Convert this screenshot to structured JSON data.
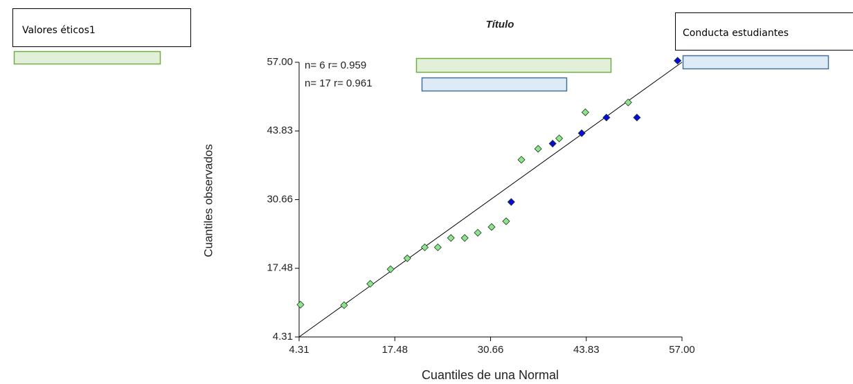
{
  "chart_data": {
    "type": "scatter",
    "title": "Título",
    "xlabel": "Cuantiles de una Normal",
    "ylabel": "Cuantiles observados",
    "xlim": [
      4.31,
      57.0
    ],
    "ylim": [
      4.31,
      57.0
    ],
    "xticks": [
      4.31,
      17.48,
      30.66,
      43.83,
      {
        "value": 57.0,
        "label": "57.00"
      }
    ],
    "yticks": [
      4.31,
      17.48,
      30.66,
      43.83,
      {
        "value": 57.0,
        "label": "57.00"
      }
    ],
    "series": [
      {
        "name": "Valores éticos1",
        "color": "#8fe38f",
        "x": [
          4.5,
          10.5,
          14.1,
          16.9,
          19.2,
          21.6,
          23.4,
          25.2,
          27.1,
          28.9,
          30.8,
          32.8,
          34.9,
          37.2,
          40.1,
          43.7,
          49.6
        ],
        "values": [
          10.5,
          10.4,
          14.5,
          17.3,
          19.4,
          21.5,
          21.5,
          23.3,
          23.3,
          24.3,
          25.4,
          26.5,
          38.3,
          40.4,
          42.4,
          47.4,
          49.3
        ]
      },
      {
        "name": "Conducta estudiantes",
        "color": "#0a0adc",
        "x": [
          33.5,
          39.2,
          43.2,
          46.6,
          50.8,
          56.4
        ],
        "values": [
          30.2,
          41.4,
          43.4,
          46.4,
          46.4,
          57.3
        ]
      }
    ],
    "reference_line": {
      "x": [
        4.31,
        57.0
      ],
      "values": [
        4.31,
        57.0
      ]
    },
    "annotations": [
      "n= 6 r= 0.959",
      "n= 17 r= 0.961"
    ]
  }
}
